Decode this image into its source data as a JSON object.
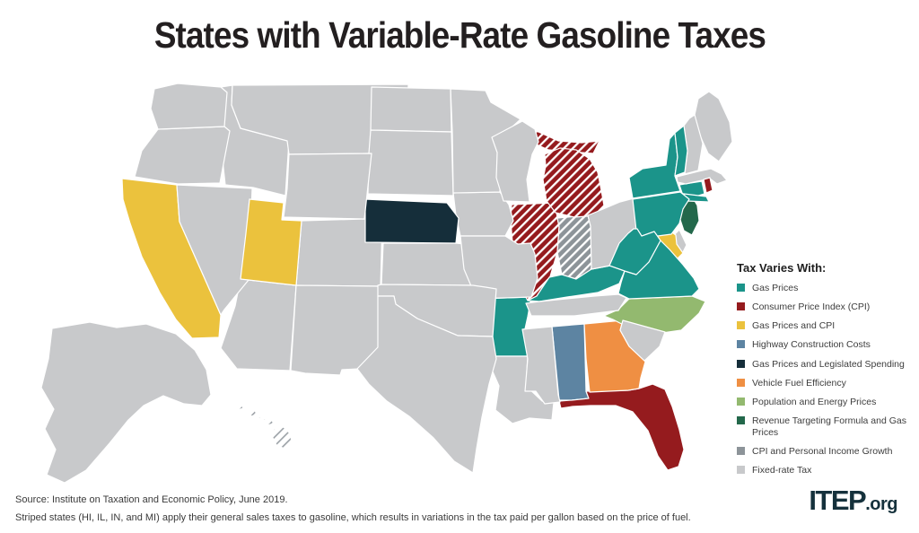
{
  "title": "States with Variable-Rate Gasoline Taxes",
  "legend": {
    "title": "Tax Varies With:",
    "items": [
      {
        "key": "gas",
        "label": "Gas Prices",
        "color": "#1b948a"
      },
      {
        "key": "cpi",
        "label": "Consumer Price Index (CPI)",
        "color": "#951b1e"
      },
      {
        "key": "gas_cpi",
        "label": "Gas Prices and CPI",
        "color": "#ebc23d"
      },
      {
        "key": "highway",
        "label": "Highway Construction Costs",
        "color": "#5d84a2"
      },
      {
        "key": "gas_spend",
        "label": "Gas Prices and Legislated Spending",
        "color": "#152e3a"
      },
      {
        "key": "fuel_eff",
        "label": "Vehicle Fuel Efficiency",
        "color": "#ef8f43"
      },
      {
        "key": "pop_energy",
        "label": "Population and Energy Prices",
        "color": "#93b96f"
      },
      {
        "key": "revenue",
        "label": "Revenue Targeting Formula and Gas Prices",
        "color": "#23684b"
      },
      {
        "key": "cpi_income",
        "label": "CPI and Personal Income Growth",
        "color": "#8d9499"
      },
      {
        "key": "fixed",
        "label": "Fixed-rate Tax",
        "color": "#c8c9cb"
      }
    ]
  },
  "source_line1": "Source: Institute on Taxation and Economic Policy, June 2019.",
  "source_line2": "Striped states (HI, IL, IN, and MI) apply their general sales taxes to gasoline, which results in variations in the tax paid per gallon based on the price of fuel.",
  "logo": {
    "text": "ITEP",
    "suffix": ".org"
  },
  "chart_data": {
    "type": "choropleth",
    "region": "United States",
    "title": "States with Variable-Rate Gasoline Taxes",
    "legend_position": "right",
    "striped_states_note": [
      "HI",
      "IL",
      "IN",
      "MI"
    ],
    "states": [
      {
        "abbr": "AL",
        "name": "Alabama",
        "key": "highway",
        "category": "Highway Construction Costs",
        "striped": false
      },
      {
        "abbr": "AK",
        "name": "Alaska",
        "key": "fixed",
        "category": "Fixed-rate Tax",
        "striped": false
      },
      {
        "abbr": "AZ",
        "name": "Arizona",
        "key": "fixed",
        "category": "Fixed-rate Tax",
        "striped": false
      },
      {
        "abbr": "AR",
        "name": "Arkansas",
        "key": "gas",
        "category": "Gas Prices",
        "striped": false
      },
      {
        "abbr": "CA",
        "name": "California",
        "key": "gas_cpi",
        "category": "Gas Prices and CPI",
        "striped": false
      },
      {
        "abbr": "CO",
        "name": "Colorado",
        "key": "fixed",
        "category": "Fixed-rate Tax",
        "striped": false
      },
      {
        "abbr": "CT",
        "name": "Connecticut",
        "key": "gas",
        "category": "Gas Prices",
        "striped": false
      },
      {
        "abbr": "DE",
        "name": "Delaware",
        "key": "fixed",
        "category": "Fixed-rate Tax",
        "striped": false
      },
      {
        "abbr": "FL",
        "name": "Florida",
        "key": "cpi",
        "category": "Consumer Price Index (CPI)",
        "striped": false
      },
      {
        "abbr": "GA",
        "name": "Georgia",
        "key": "fuel_eff",
        "category": "Vehicle Fuel Efficiency",
        "striped": false
      },
      {
        "abbr": "HI",
        "name": "Hawaii",
        "key": "none",
        "category": "General sales tax applies (striped)",
        "striped": true
      },
      {
        "abbr": "ID",
        "name": "Idaho",
        "key": "fixed",
        "category": "Fixed-rate Tax",
        "striped": false
      },
      {
        "abbr": "IL",
        "name": "Illinois",
        "key": "cpi",
        "category": "Consumer Price Index (CPI)",
        "striped": true
      },
      {
        "abbr": "IN",
        "name": "Indiana",
        "key": "cpi_income",
        "category": "CPI and Personal Income Growth",
        "striped": true
      },
      {
        "abbr": "IA",
        "name": "Iowa",
        "key": "fixed",
        "category": "Fixed-rate Tax",
        "striped": false
      },
      {
        "abbr": "KS",
        "name": "Kansas",
        "key": "fixed",
        "category": "Fixed-rate Tax",
        "striped": false
      },
      {
        "abbr": "KY",
        "name": "Kentucky",
        "key": "gas",
        "category": "Gas Prices",
        "striped": false
      },
      {
        "abbr": "LA",
        "name": "Louisiana",
        "key": "fixed",
        "category": "Fixed-rate Tax",
        "striped": false
      },
      {
        "abbr": "ME",
        "name": "Maine",
        "key": "fixed",
        "category": "Fixed-rate Tax",
        "striped": false
      },
      {
        "abbr": "MD",
        "name": "Maryland",
        "key": "gas_cpi",
        "category": "Gas Prices and CPI",
        "striped": false
      },
      {
        "abbr": "MA",
        "name": "Massachusetts",
        "key": "fixed",
        "category": "Fixed-rate Tax",
        "striped": false
      },
      {
        "abbr": "MI",
        "name": "Michigan",
        "key": "cpi",
        "category": "Consumer Price Index (CPI)",
        "striped": true
      },
      {
        "abbr": "MN",
        "name": "Minnesota",
        "key": "fixed",
        "category": "Fixed-rate Tax",
        "striped": false
      },
      {
        "abbr": "MS",
        "name": "Mississippi",
        "key": "fixed",
        "category": "Fixed-rate Tax",
        "striped": false
      },
      {
        "abbr": "MO",
        "name": "Missouri",
        "key": "fixed",
        "category": "Fixed-rate Tax",
        "striped": false
      },
      {
        "abbr": "MT",
        "name": "Montana",
        "key": "fixed",
        "category": "Fixed-rate Tax",
        "striped": false
      },
      {
        "abbr": "NE",
        "name": "Nebraska",
        "key": "gas_spend",
        "category": "Gas Prices and Legislated Spending",
        "striped": false
      },
      {
        "abbr": "NV",
        "name": "Nevada",
        "key": "fixed",
        "category": "Fixed-rate Tax",
        "striped": false
      },
      {
        "abbr": "NH",
        "name": "New Hampshire",
        "key": "fixed",
        "category": "Fixed-rate Tax",
        "striped": false
      },
      {
        "abbr": "NJ",
        "name": "New Jersey",
        "key": "revenue",
        "category": "Revenue Targeting Formula and Gas Prices",
        "striped": false
      },
      {
        "abbr": "NM",
        "name": "New Mexico",
        "key": "fixed",
        "category": "Fixed-rate Tax",
        "striped": false
      },
      {
        "abbr": "NY",
        "name": "New York",
        "key": "gas",
        "category": "Gas Prices",
        "striped": false
      },
      {
        "abbr": "NC",
        "name": "North Carolina",
        "key": "pop_energy",
        "category": "Population and Energy Prices",
        "striped": false
      },
      {
        "abbr": "ND",
        "name": "North Dakota",
        "key": "fixed",
        "category": "Fixed-rate Tax",
        "striped": false
      },
      {
        "abbr": "OH",
        "name": "Ohio",
        "key": "fixed",
        "category": "Fixed-rate Tax",
        "striped": false
      },
      {
        "abbr": "OK",
        "name": "Oklahoma",
        "key": "fixed",
        "category": "Fixed-rate Tax",
        "striped": false
      },
      {
        "abbr": "OR",
        "name": "Oregon",
        "key": "fixed",
        "category": "Fixed-rate Tax",
        "striped": false
      },
      {
        "abbr": "PA",
        "name": "Pennsylvania",
        "key": "gas",
        "category": "Gas Prices",
        "striped": false
      },
      {
        "abbr": "RI",
        "name": "Rhode Island",
        "key": "cpi",
        "category": "Consumer Price Index (CPI)",
        "striped": false
      },
      {
        "abbr": "SC",
        "name": "South Carolina",
        "key": "fixed",
        "category": "Fixed-rate Tax",
        "striped": false
      },
      {
        "abbr": "SD",
        "name": "South Dakota",
        "key": "fixed",
        "category": "Fixed-rate Tax",
        "striped": false
      },
      {
        "abbr": "TN",
        "name": "Tennessee",
        "key": "fixed",
        "category": "Fixed-rate Tax",
        "striped": false
      },
      {
        "abbr": "TX",
        "name": "Texas",
        "key": "fixed",
        "category": "Fixed-rate Tax",
        "striped": false
      },
      {
        "abbr": "UT",
        "name": "Utah",
        "key": "gas_cpi",
        "category": "Gas Prices and CPI",
        "striped": false
      },
      {
        "abbr": "VT",
        "name": "Vermont",
        "key": "gas",
        "category": "Gas Prices",
        "striped": false
      },
      {
        "abbr": "VA",
        "name": "Virginia",
        "key": "gas",
        "category": "Gas Prices",
        "striped": false
      },
      {
        "abbr": "WA",
        "name": "Washington",
        "key": "fixed",
        "category": "Fixed-rate Tax",
        "striped": false
      },
      {
        "abbr": "WV",
        "name": "West Virginia",
        "key": "gas",
        "category": "Gas Prices",
        "striped": false
      },
      {
        "abbr": "WI",
        "name": "Wisconsin",
        "key": "fixed",
        "category": "Fixed-rate Tax",
        "striped": false
      },
      {
        "abbr": "WY",
        "name": "Wyoming",
        "key": "fixed",
        "category": "Fixed-rate Tax",
        "striped": false
      }
    ]
  }
}
